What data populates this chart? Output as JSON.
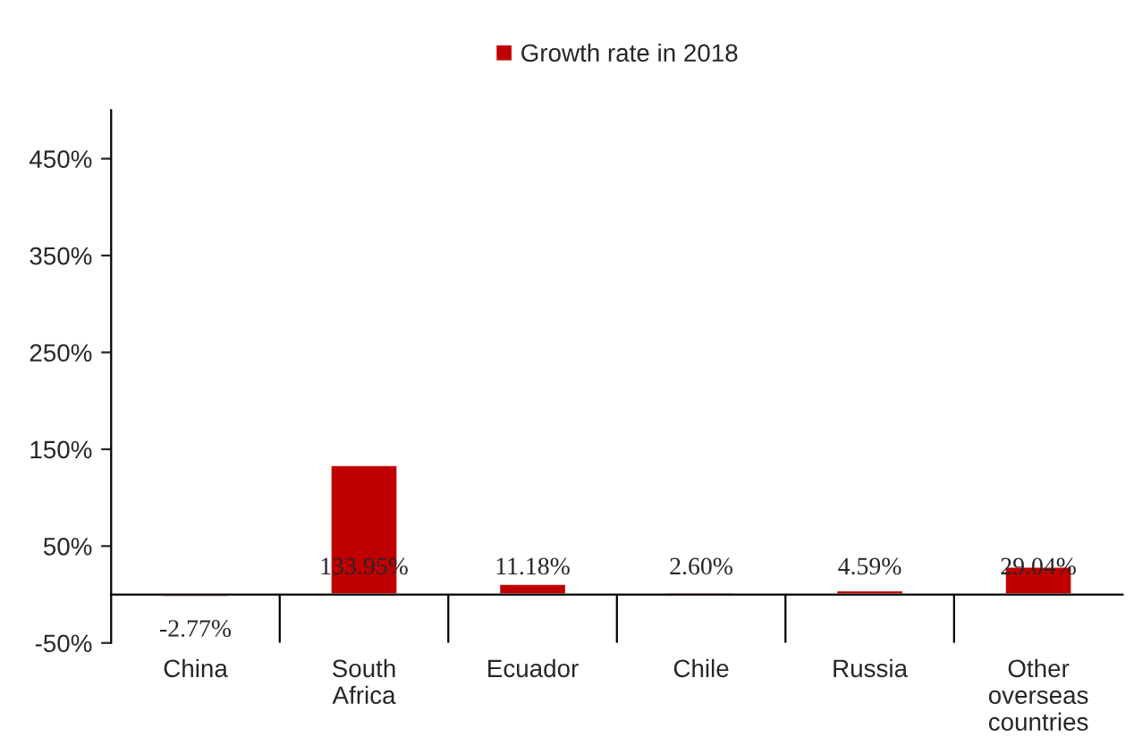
{
  "chart_data": {
    "type": "bar",
    "categories": [
      "China",
      "South Africa",
      "Ecuador",
      "Chile",
      "Russia",
      "Other overseas countries"
    ],
    "series": [
      {
        "name": "Growth rate in 2018",
        "color": "#c00000",
        "values": [
          -2.77,
          133.95,
          11.18,
          2.6,
          4.59,
          29.04
        ],
        "value_labels": [
          "-2.77%",
          "133.95%",
          "11.18%",
          "2.60%",
          "4.59%",
          "29.04%"
        ]
      }
    ],
    "ylim": [
      -50,
      500
    ],
    "yticks": [
      {
        "value": -50,
        "label": "-50%"
      },
      {
        "value": 50,
        "label": "50%"
      },
      {
        "value": 150,
        "label": "150%"
      },
      {
        "value": 250,
        "label": "250%"
      },
      {
        "value": 350,
        "label": "350%"
      },
      {
        "value": 450,
        "label": "450%"
      }
    ],
    "legend": "top",
    "grid": false
  }
}
